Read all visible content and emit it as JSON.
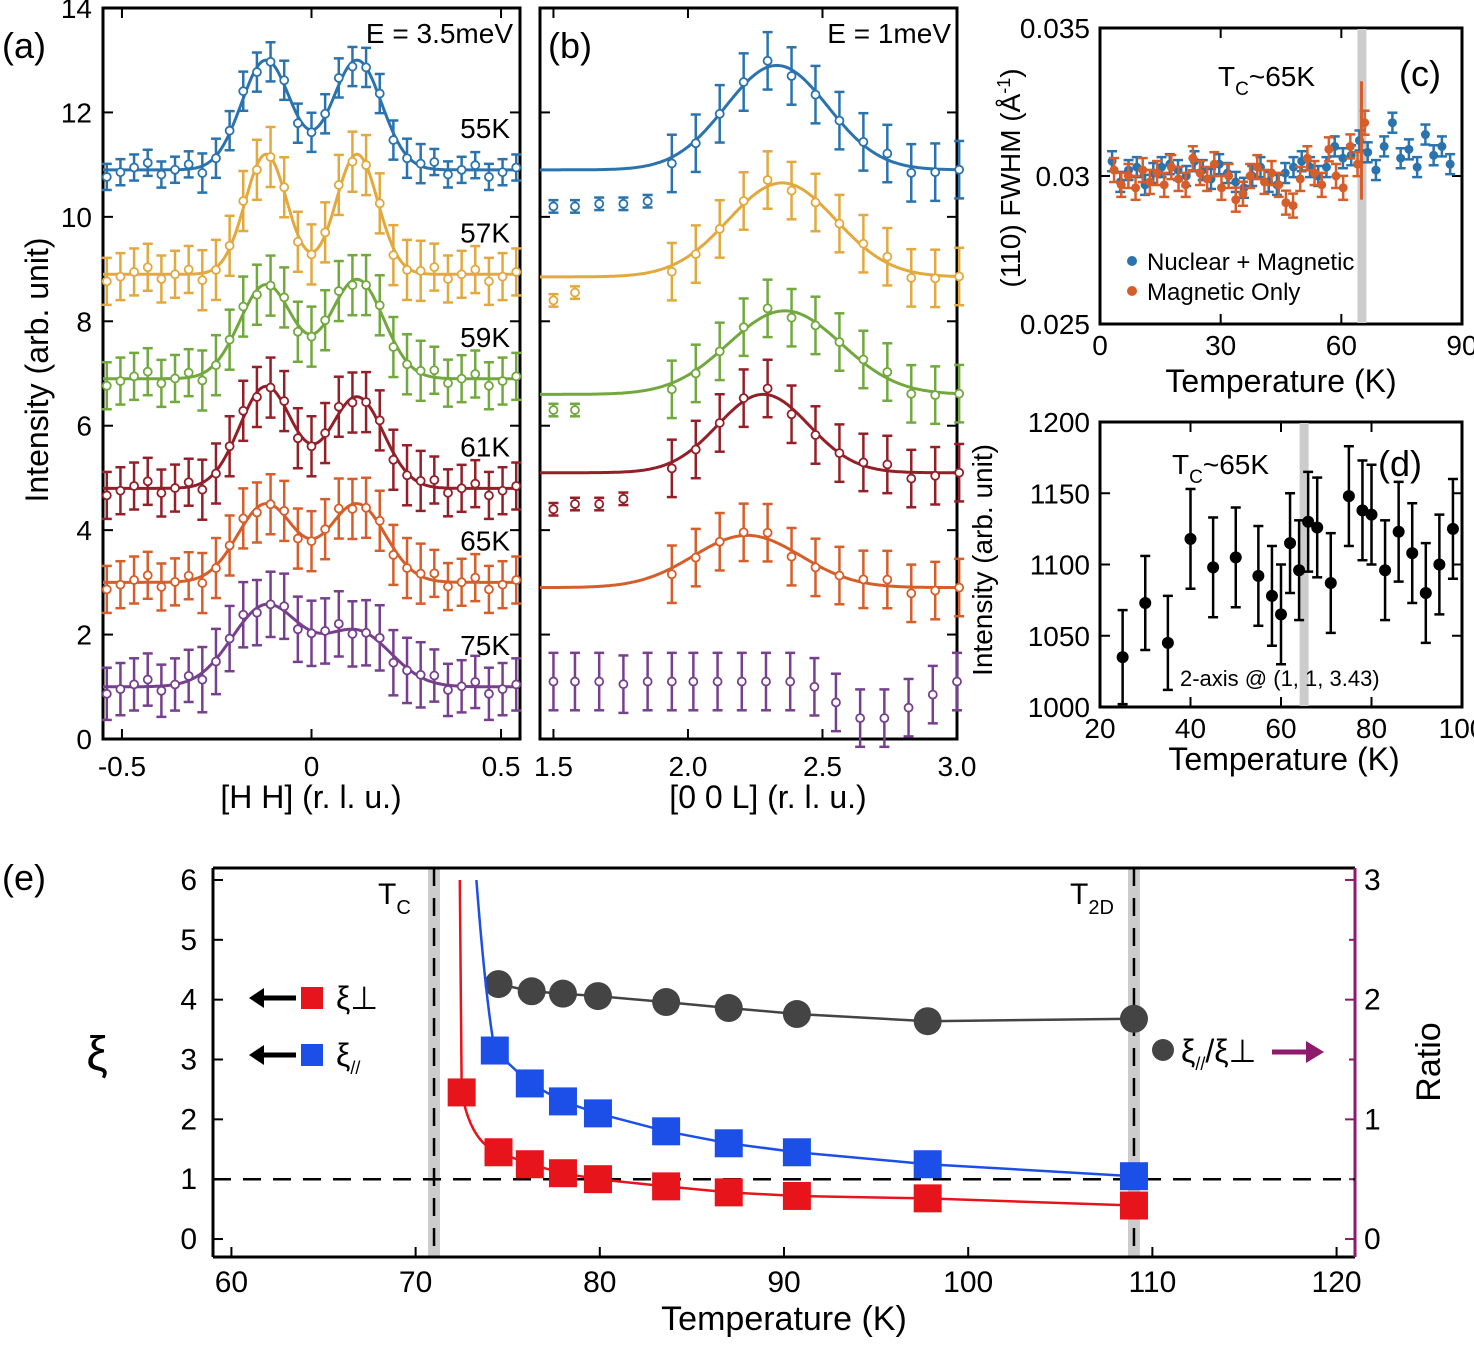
{
  "colors": {
    "T55": "#2b73ad",
    "T57": "#e2a93e",
    "T59": "#72a83e",
    "T61": "#932029",
    "T65": "#d55e2a",
    "T75": "#77408e",
    "red": "#e8141c",
    "blue": "#1c4fe8",
    "gray": "#444444",
    "purple": "#8e1a6d",
    "band": "#cccccc"
  },
  "chart_data": [
    {
      "panel": "(a)",
      "type": "scatter",
      "annotation": "E = 3.5meV",
      "xlabel": "[H H] (r. l. u.)",
      "ylabel": "Intensity (arb. unit)",
      "xlim": [
        -0.55,
        0.55
      ],
      "ylim": [
        0,
        14
      ],
      "xticks": [
        "-0.5",
        "0",
        "0.5"
      ],
      "yticks": [
        "0",
        "2",
        "4",
        "6",
        "8",
        "10",
        "12",
        "14"
      ],
      "series": [
        {
          "name": "55K",
          "offset": 10.9,
          "amps": [
            2.1,
            2.1
          ],
          "centers": [
            -0.12,
            0.12
          ],
          "sigma": 0.065,
          "err": 0.5
        },
        {
          "name": "57K",
          "offset": 8.9,
          "amps": [
            2.3,
            2.3
          ],
          "centers": [
            -0.12,
            0.12
          ],
          "sigma": 0.055,
          "err": 0.9
        },
        {
          "name": "59K",
          "offset": 6.9,
          "amps": [
            1.8,
            1.9
          ],
          "centers": [
            -0.12,
            0.12
          ],
          "sigma": 0.07,
          "err": 0.9
        },
        {
          "name": "61K",
          "offset": 4.8,
          "amps": [
            1.95,
            1.75
          ],
          "centers": [
            -0.12,
            0.12
          ],
          "sigma": 0.07,
          "err": 0.9
        },
        {
          "name": "65K",
          "offset": 3.0,
          "amps": [
            1.5,
            1.5
          ],
          "centers": [
            -0.12,
            0.12
          ],
          "sigma": 0.075,
          "err": 0.9
        },
        {
          "name": "75K",
          "offset": 1.0,
          "amps": [
            1.55,
            1.05
          ],
          "centers": [
            -0.12,
            0.12
          ],
          "sigma": 0.09,
          "err": 1.0
        }
      ]
    },
    {
      "panel": "(b)",
      "type": "scatter",
      "annotation": "E = 1meV",
      "xlabel": "[0 0 L] (r. l. u.)",
      "xlim": [
        1.45,
        3.0
      ],
      "ylim": [
        0,
        14
      ],
      "xticks": [
        "1.5",
        "2.0",
        "2.5",
        "3.0"
      ],
      "series": [
        {
          "name": "55K",
          "offset": 10.9,
          "amp": 2.0,
          "center": 2.33,
          "sigma": 0.19,
          "low": [
            [
              1.5,
              10.2
            ],
            [
              1.58,
              10.2
            ],
            [
              1.67,
              10.25
            ],
            [
              1.76,
              10.25
            ],
            [
              1.85,
              10.3
            ]
          ]
        },
        {
          "name": "57K",
          "offset": 8.85,
          "amp": 1.8,
          "center": 2.35,
          "sigma": 0.2,
          "low": [
            [
              1.5,
              8.4
            ],
            [
              1.58,
              8.55
            ]
          ]
        },
        {
          "name": "59K",
          "offset": 6.6,
          "amp": 1.6,
          "center": 2.36,
          "sigma": 0.21,
          "low": [
            [
              1.5,
              6.3
            ],
            [
              1.58,
              6.3
            ]
          ]
        },
        {
          "name": "61K",
          "offset": 5.1,
          "amp": 1.5,
          "center": 2.28,
          "sigma": 0.17,
          "low": [
            [
              1.5,
              4.4
            ],
            [
              1.58,
              4.5
            ],
            [
              1.67,
              4.5
            ],
            [
              1.76,
              4.6
            ]
          ]
        },
        {
          "name": "65K",
          "offset": 2.9,
          "amp": 1.0,
          "center": 2.22,
          "sigma": 0.2,
          "low": []
        },
        {
          "name": "75K",
          "values": [
            [
              1.5,
              1.1
            ],
            [
              1.58,
              1.1
            ],
            [
              1.67,
              1.1
            ],
            [
              1.76,
              1.05
            ],
            [
              1.85,
              1.1
            ],
            [
              1.94,
              1.1
            ],
            [
              2.02,
              1.1
            ],
            [
              2.11,
              1.1
            ],
            [
              2.2,
              1.1
            ],
            [
              2.29,
              1.1
            ],
            [
              2.38,
              1.1
            ],
            [
              2.47,
              1.0
            ],
            [
              2.55,
              0.7
            ],
            [
              2.64,
              0.4
            ],
            [
              2.73,
              0.4
            ],
            [
              2.82,
              0.6
            ],
            [
              2.91,
              0.85
            ],
            [
              3.0,
              1.1
            ]
          ]
        }
      ]
    },
    {
      "panel": "(c)",
      "type": "scatter",
      "annotation_prefix": "T",
      "annotation_sub": "C",
      "annotation_suffix": "~65K",
      "xlabel": "Temperature (K)",
      "ylabel_a": "(110) FWHM (Å",
      "ylabel_sup": "-1",
      "ylabel_b": ")",
      "xlim": [
        0,
        90
      ],
      "ylim": [
        0.025,
        0.035
      ],
      "xticks": [
        "0",
        "30",
        "60",
        "90"
      ],
      "yticks": [
        "0.025",
        "0.03",
        "0.035"
      ],
      "tc_line": 65,
      "legend": [
        "Nuclear + Magnetic",
        "Magnetic Only"
      ]
    },
    {
      "panel": "(d)",
      "type": "scatter",
      "annotation_prefix": "T",
      "annotation_sub": "C",
      "annotation_suffix": "~65K",
      "note": "2-axis @ (1, 1, 3.43)",
      "xlabel": "Temperature (K)",
      "ylabel": "Intensity (arb. unit)",
      "xlim": [
        20,
        100
      ],
      "ylim": [
        1000,
        1200
      ],
      "xticks": [
        "20",
        "40",
        "60",
        "80",
        "100"
      ],
      "yticks": [
        "1000",
        "1050",
        "1100",
        "1150",
        "1200"
      ],
      "tc_line": 65,
      "x": [
        25,
        30,
        35,
        40,
        45,
        50,
        55,
        58,
        60,
        62,
        64,
        66,
        68,
        71,
        75,
        78,
        80,
        83,
        86,
        89,
        92,
        95,
        98
      ],
      "y": [
        1035,
        1073,
        1045,
        1118,
        1098,
        1105,
        1092,
        1078,
        1065,
        1115,
        1096,
        1130,
        1126,
        1087,
        1148,
        1138,
        1135,
        1096,
        1123,
        1108,
        1080,
        1100,
        1125
      ],
      "err": [
        33,
        33,
        33,
        35,
        35,
        35,
        35,
        35,
        35,
        35,
        35,
        35,
        35,
        35,
        35,
        35,
        35,
        35,
        35,
        35,
        35,
        35,
        35
      ]
    },
    {
      "panel": "(e)",
      "type": "line",
      "xlabel": "Temperature (K)",
      "ylabel": "ξ",
      "y2label": "Ratio",
      "xlim": [
        59,
        121
      ],
      "ylim": [
        -0.3,
        6.2
      ],
      "y2lim": [
        -0.15,
        3.1
      ],
      "xticks": [
        "60",
        "70",
        "80",
        "90",
        "100",
        "110",
        "120"
      ],
      "yticks": [
        "0",
        "1",
        "2",
        "3",
        "4",
        "5",
        "6"
      ],
      "y2ticks": [
        "0",
        "1",
        "2",
        "3"
      ],
      "tc": 71,
      "t2d": 109,
      "hline": 1,
      "tc_label": "T",
      "tc_sub": "C",
      "t2d_label": "T",
      "t2d_sub": "2D",
      "legend_perp": "ξ⊥",
      "legend_par_a": "ξ",
      "legend_par_sub": "//",
      "legend_ratio_a": "ξ",
      "legend_ratio_sub": "//",
      "legend_ratio_b": "/ξ⊥",
      "xi_perp": {
        "x": [
          72.5,
          74.5,
          76.2,
          78,
          79.9,
          83.6,
          87,
          90.7,
          97.8,
          109
        ],
        "y": [
          2.45,
          1.45,
          1.25,
          1.1,
          1.0,
          0.88,
          0.78,
          0.72,
          0.68,
          0.56
        ]
      },
      "xi_par": {
        "x": [
          74.3,
          76.2,
          78,
          79.9,
          83.6,
          87,
          90.7,
          97.8,
          109
        ],
        "y": [
          3.15,
          2.6,
          2.3,
          2.1,
          1.8,
          1.6,
          1.45,
          1.25,
          1.05
        ]
      },
      "ratio": {
        "x": [
          74.5,
          76.3,
          78,
          79.9,
          83.6,
          87,
          90.7,
          97.8,
          109
        ],
        "y": [
          2.13,
          2.07,
          2.05,
          2.03,
          1.98,
          1.93,
          1.88,
          1.82,
          1.84
        ]
      }
    }
  ],
  "labels": {
    "a": "(a)",
    "b": "(b)",
    "c": "(c)",
    "d": "(d)",
    "e": "(e)"
  }
}
